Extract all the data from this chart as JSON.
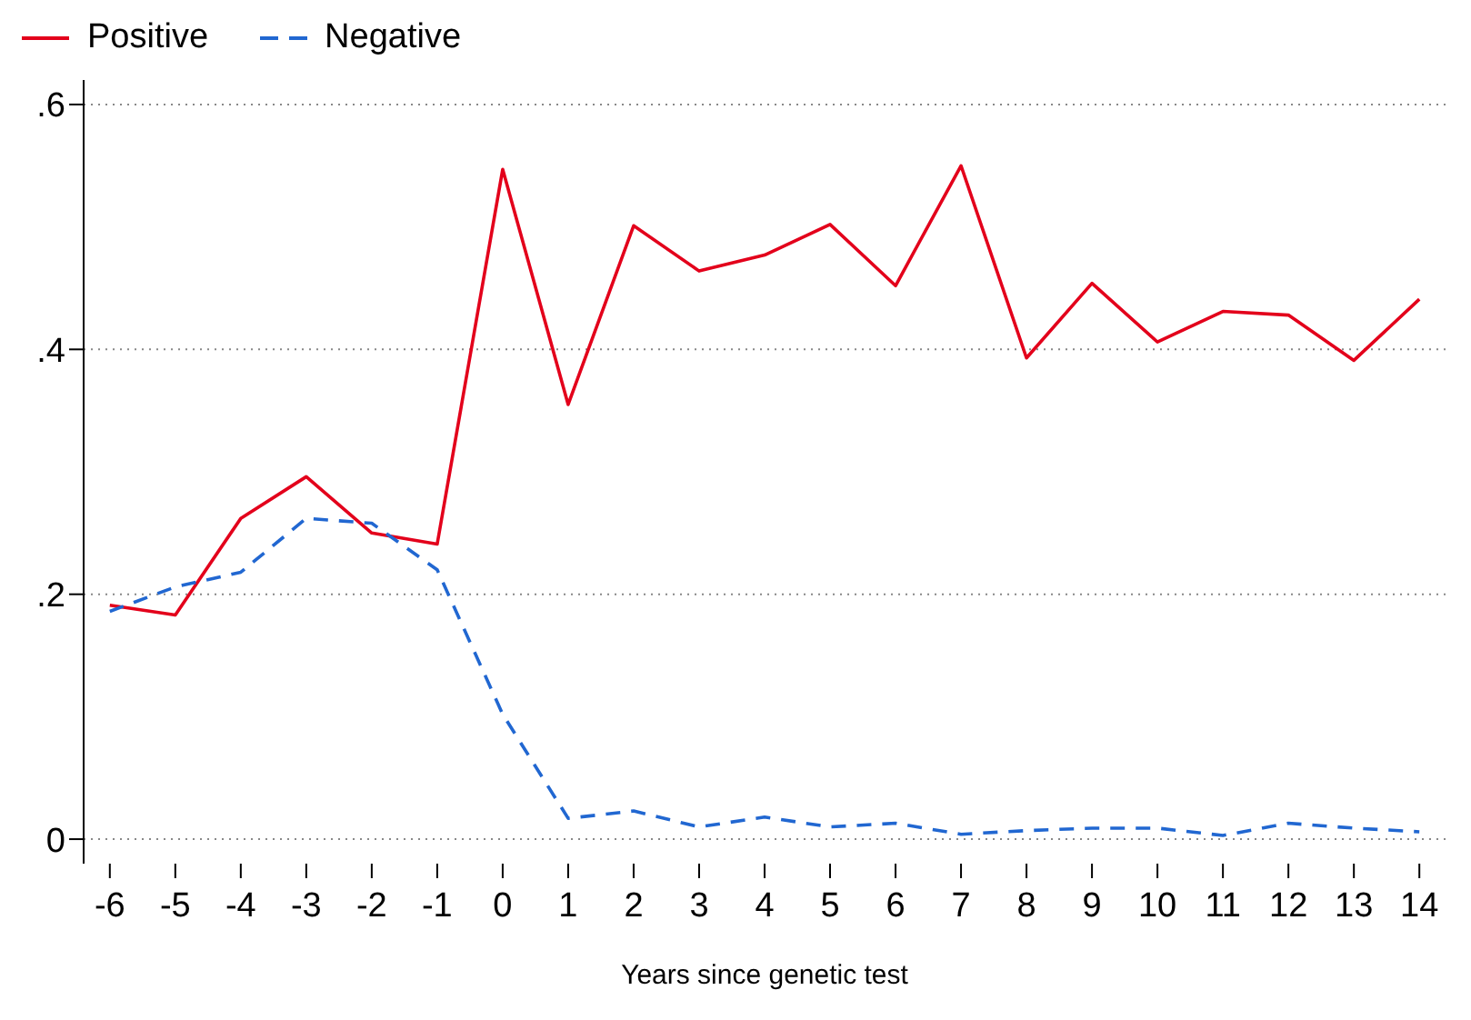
{
  "chart_data": {
    "type": "line",
    "xlabel": "Years since genetic test",
    "x": [
      -6,
      -5,
      -4,
      -3,
      -2,
      -1,
      0,
      1,
      2,
      3,
      4,
      5,
      6,
      7,
      8,
      9,
      10,
      11,
      12,
      13,
      14
    ],
    "series": [
      {
        "name": "Positive",
        "color": "#e3001b",
        "line_style": "solid",
        "values": [
          0.191,
          0.183,
          0.262,
          0.296,
          0.25,
          0.241,
          0.547,
          0.355,
          0.501,
          0.464,
          0.477,
          0.502,
          0.452,
          0.55,
          0.393,
          0.454,
          0.406,
          0.431,
          0.428,
          0.391,
          0.441
        ]
      },
      {
        "name": "Negative",
        "color": "#2167d1",
        "line_style": "dashed",
        "values": [
          0.186,
          0.206,
          0.218,
          0.262,
          0.258,
          0.22,
          0.102,
          0.017,
          0.023,
          0.01,
          0.018,
          0.01,
          0.013,
          0.004,
          0.007,
          0.009,
          0.009,
          0.003,
          0.013,
          0.009,
          0.006
        ]
      }
    ],
    "xlim": [
      -6.4,
      14.4
    ],
    "xticks": [
      -6,
      -5,
      -4,
      -3,
      -2,
      -1,
      0,
      1,
      2,
      3,
      4,
      5,
      6,
      7,
      8,
      9,
      10,
      11,
      12,
      13,
      14
    ],
    "ylim": [
      -0.02,
      0.62
    ],
    "yticks": [
      {
        "value": 0,
        "label": "0"
      },
      {
        "value": 0.2,
        "label": ".2"
      },
      {
        "value": 0.4,
        "label": ".4"
      },
      {
        "value": 0.6,
        "label": ".6"
      }
    ],
    "grid": "y",
    "legend": "top left",
    "marker": "none"
  }
}
